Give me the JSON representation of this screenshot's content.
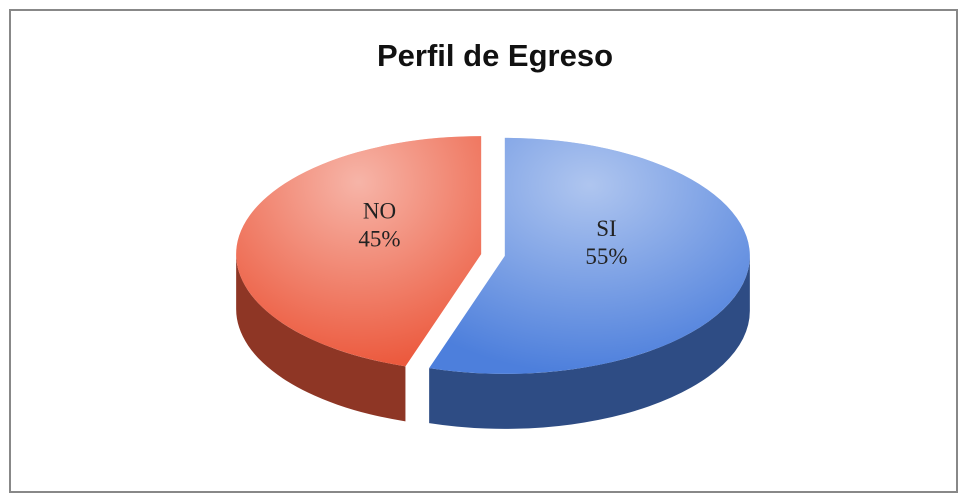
{
  "chart_data": {
    "type": "pie",
    "title": "Perfil de Egreso",
    "categories": [
      "SI",
      "NO"
    ],
    "values": [
      55,
      45
    ],
    "value_labels": [
      "55%",
      "45%"
    ],
    "colors": [
      "#4d7fdc",
      "#ec5a3e"
    ]
  }
}
